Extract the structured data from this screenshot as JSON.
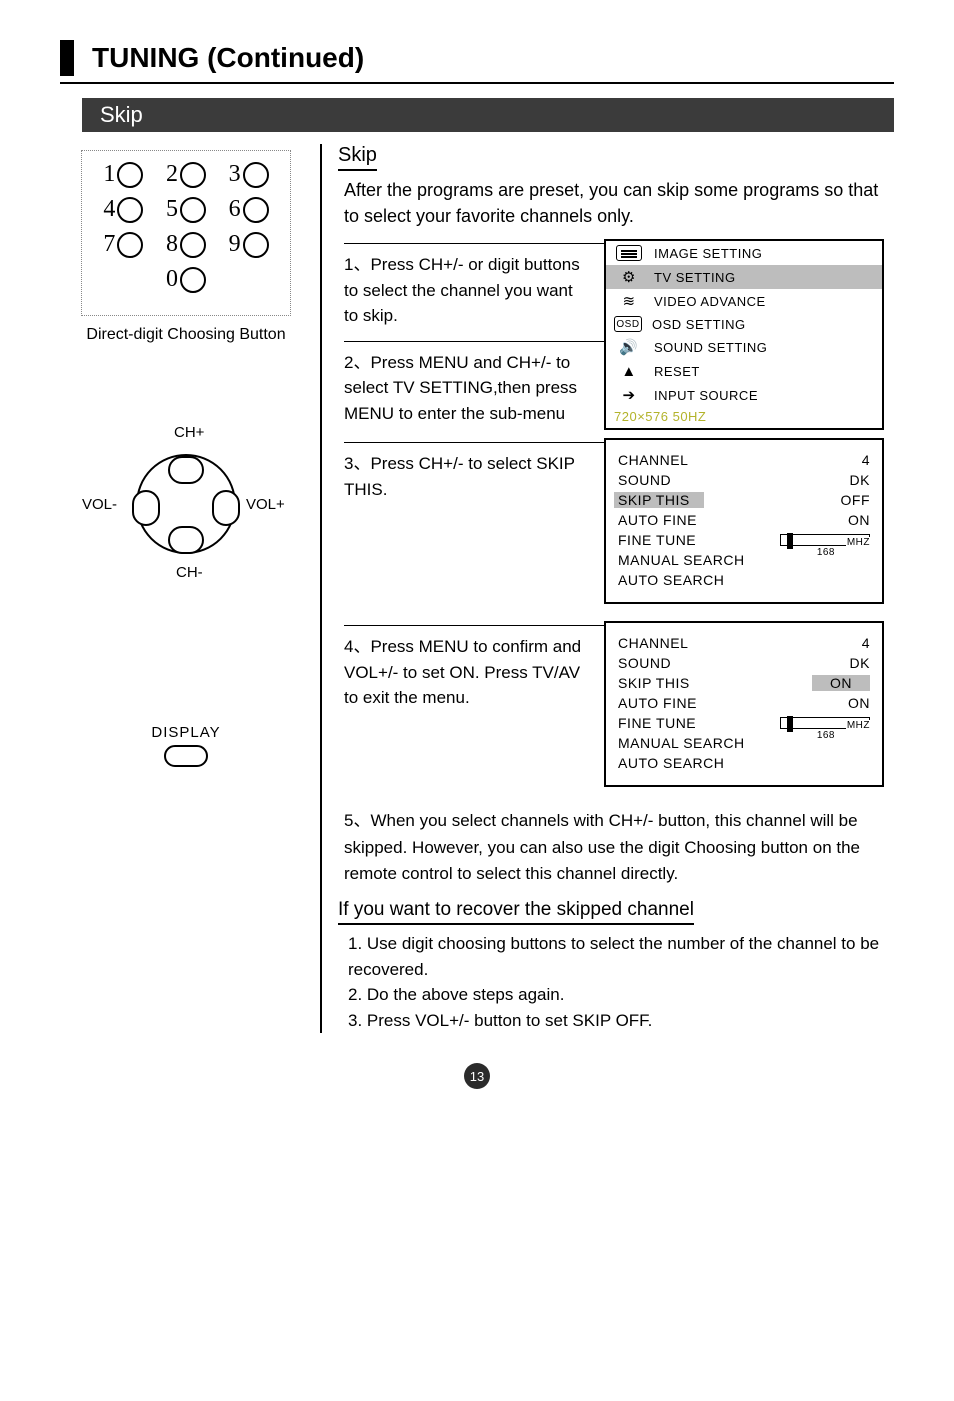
{
  "page": {
    "title": "TUNING (Continued)",
    "section": "Skip",
    "number": "13"
  },
  "left": {
    "keypad": {
      "caption": "Direct-digit Choosing Button",
      "digits": [
        "1",
        "2",
        "3",
        "4",
        "5",
        "6",
        "7",
        "8",
        "9",
        "0"
      ]
    },
    "dpad": {
      "up": "CH+",
      "down": "CH-",
      "left": "VOL-",
      "right": "VOL+"
    },
    "display": "DISPLAY"
  },
  "right": {
    "sub_title": "Skip",
    "intro": "After the programs are preset, you can skip some programs so that to  select  your favorite channels only.",
    "step1": "1、Press CH+/- or digit buttons to select the channel you want to skip.",
    "step2": "2、Press MENU and CH+/- to select TV SETTING,then press MENU to enter the sub-menu",
    "step3": "3、Press CH+/- to select SKIP THIS.",
    "step4": "4、Press MENU to confirm and VOL+/- to set ON. Press TV/AV to exit the menu.",
    "step5": "5、When you select channels with CH+/- button, this channel will be skipped. However, you can also use the digit Choosing button on the remote control to select this channel directly.",
    "recover_title": "If you want to recover the skipped channel",
    "recover": [
      "1. Use digit choosing buttons to select the number of the  channel  to be recovered.",
      "2. Do the above steps again.",
      "3. Press VOL+/- button to set SKIP OFF."
    ]
  },
  "mainMenu": {
    "items": [
      {
        "label": "IMAGE SETTING",
        "icon": "list-icon",
        "sel": false
      },
      {
        "label": "TV SETTING",
        "icon": "dish-icon",
        "sel": true
      },
      {
        "label": "VIDEO ADVANCE",
        "icon": "signal-icon",
        "sel": false
      },
      {
        "label": "OSD SETTING",
        "icon": "osd-icon",
        "sel": false
      },
      {
        "label": "SOUND SETTING",
        "icon": "speaker-icon",
        "sel": false
      },
      {
        "label": "RESET",
        "icon": "reset-icon",
        "sel": false
      },
      {
        "label": "INPUT SOURCE",
        "icon": "arrow-icon",
        "sel": false
      }
    ],
    "footer": "720×576    50HZ",
    "footer_color": "#b3b32b"
  },
  "tvMenu1": {
    "rows": [
      {
        "k": "CHANNEL",
        "v": "4"
      },
      {
        "k": "SOUND",
        "v": "DK"
      },
      {
        "k": "SKIP THIS",
        "v": "OFF",
        "sel_k": true
      },
      {
        "k": "AUTO FINE",
        "v": "ON"
      },
      {
        "k": "FINE TUNE",
        "bar": true,
        "n": "168",
        "u": "MHZ"
      },
      {
        "k": "MANUAL SEARCH",
        "v": ""
      },
      {
        "k": "AUTO SEARCH",
        "v": ""
      }
    ]
  },
  "tvMenu2": {
    "rows": [
      {
        "k": "CHANNEL",
        "v": "4"
      },
      {
        "k": "SOUND",
        "v": "DK"
      },
      {
        "k": "SKIP THIS",
        "v": "ON",
        "sel_v": true
      },
      {
        "k": "AUTO FINE",
        "v": "ON"
      },
      {
        "k": "FINE TUNE",
        "bar": true,
        "n": "168",
        "u": "MHZ"
      },
      {
        "k": "MANUAL SEARCH",
        "v": ""
      },
      {
        "k": "AUTO SEARCH",
        "v": ""
      }
    ]
  },
  "icons": {
    "list-icon": "≡",
    "dish-icon": "⚙",
    "signal-icon": "≋",
    "osd-icon": "OSD",
    "speaker-icon": "🔊",
    "reset-icon": "▲",
    "arrow-icon": "➔"
  }
}
